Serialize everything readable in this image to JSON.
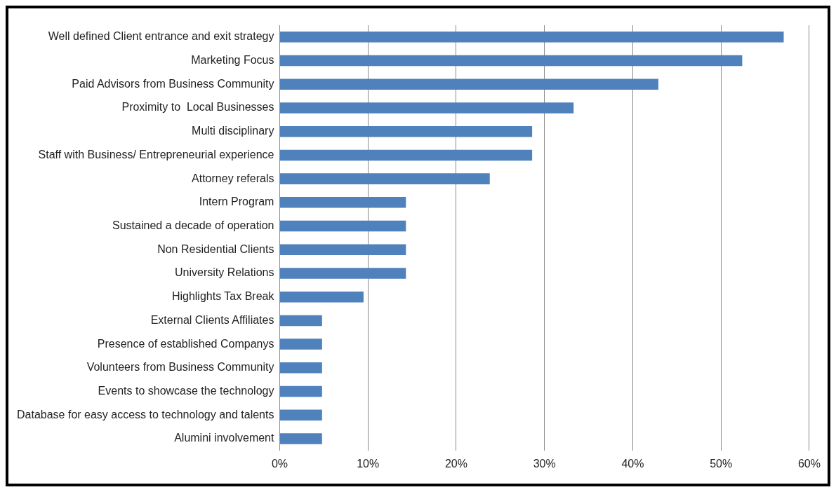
{
  "chart_data": {
    "type": "bar",
    "orientation": "horizontal",
    "categories": [
      "Well defined Client entrance and exit strategy",
      "Marketing Focus",
      "Paid Advisors from Business Community",
      "Proximity to  Local Businesses",
      "Multi disciplinary",
      "Staff with Business/ Entrepreneurial experience",
      "Attorney referals",
      "Intern Program",
      "Sustained a decade of operation",
      "Non Residential Clients",
      "University Relations",
      "Highlights Tax Break",
      "External Clients Affiliates",
      "Presence of established Companys",
      "Volunteers from Business Community",
      "Events to showcase the technology",
      "Database for easy access to technology and talents",
      "Alumini involvement"
    ],
    "values": [
      57.1,
      52.4,
      42.9,
      33.3,
      28.6,
      28.6,
      23.8,
      14.3,
      14.3,
      14.3,
      14.3,
      9.5,
      4.8,
      4.8,
      4.8,
      4.8,
      4.8,
      4.8
    ],
    "color": "#4f81bd",
    "xlim": [
      0,
      60
    ],
    "xticks": [
      {
        "value": 0,
        "label": "0%"
      },
      {
        "value": 10,
        "label": "10%"
      },
      {
        "value": 20,
        "label": "20%"
      },
      {
        "value": 30,
        "label": "30%"
      },
      {
        "value": 40,
        "label": "40%"
      },
      {
        "value": 50,
        "label": "50%"
      },
      {
        "value": 60,
        "label": "60%"
      }
    ],
    "grid": "x",
    "legend": false
  }
}
